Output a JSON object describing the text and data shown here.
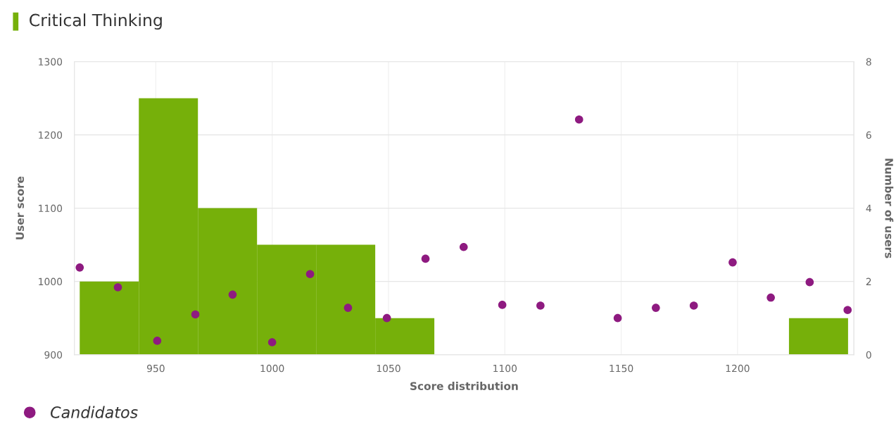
{
  "chart_data": {
    "type": "scatter",
    "title": "Critical Thinking",
    "xlabel": "Score distribution",
    "ylabel": "User score",
    "y2label": "Number of users",
    "xlim": [
      915,
      1250
    ],
    "xticks": [
      950,
      1000,
      1050,
      1100,
      1150,
      1200
    ],
    "ylim": [
      900,
      1300
    ],
    "yticks": [
      900,
      1000,
      1100,
      1200,
      1300
    ],
    "y2lim": [
      0,
      8
    ],
    "y2ticks": [
      0,
      2,
      4,
      6,
      8
    ],
    "grid": true,
    "legend": "bottom left",
    "marker": "circle",
    "series": [
      {
        "type": "histogram",
        "axis": "y2",
        "color": "#76b00a",
        "bins": [
          917.3,
          942.7,
          968.1,
          993.5,
          1018.9,
          1044.3,
          1069.7,
          1095.1,
          1120.5,
          1145.9,
          1171.3,
          1196.7,
          1222.1,
          1247.5
        ],
        "values": [
          2,
          7,
          4,
          3,
          3,
          1,
          0,
          0,
          0,
          0,
          0,
          0,
          1
        ]
      },
      {
        "name": "Candidatos",
        "color": "#8e1a80",
        "x": [
          917.3,
          933.7,
          950.6,
          967,
          983,
          1000,
          1016.3,
          1032.6,
          1049.3,
          1065.9,
          1082.3,
          1098.9,
          1115.3,
          1131.9,
          1148.5,
          1164.9,
          1181.2,
          1197.9,
          1214.3,
          1231,
          1247.3
        ],
        "values": [
          1019,
          992,
          919,
          955,
          982,
          917,
          1010,
          964,
          950,
          1031,
          1047,
          968,
          967,
          1221,
          950,
          964,
          967,
          1026,
          978,
          999,
          961
        ]
      }
    ]
  }
}
